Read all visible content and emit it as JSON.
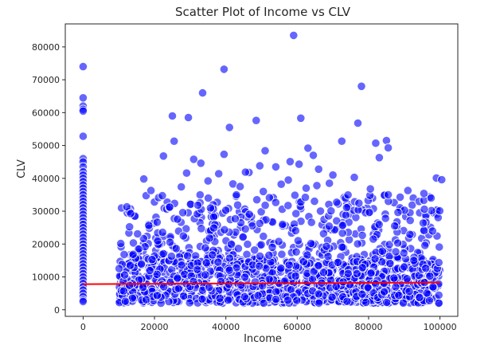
{
  "chart_data": {
    "type": "scatter",
    "title": "Scatter Plot of Income vs CLV",
    "xlabel": "Income",
    "ylabel": "CLV",
    "xlim": [
      -5000,
      105000
    ],
    "ylim": [
      -2000,
      87000
    ],
    "xticks": [
      0,
      20000,
      40000,
      60000,
      80000,
      100000
    ],
    "yticks": [
      0,
      10000,
      20000,
      30000,
      40000,
      50000,
      60000,
      70000,
      80000
    ],
    "grid": false,
    "legend": "none",
    "colors": {
      "points": "#0000ff",
      "point_edge": "#ffffff",
      "trend": "#ff0000",
      "axes": "#262626"
    },
    "points_at_zero_income": [
      [
        0,
        74000
      ],
      [
        0,
        64500
      ],
      [
        0,
        62000
      ],
      [
        0,
        61000
      ],
      [
        0,
        60500
      ],
      [
        0,
        52800
      ],
      [
        0,
        46000
      ],
      [
        0,
        45000
      ],
      [
        0,
        43500
      ],
      [
        0,
        42000
      ],
      [
        0,
        41000
      ],
      [
        0,
        40000
      ],
      [
        0,
        39000
      ],
      [
        0,
        38000
      ],
      [
        0,
        37000
      ],
      [
        0,
        36000
      ],
      [
        0,
        35000
      ],
      [
        0,
        34000
      ],
      [
        0,
        33000
      ],
      [
        0,
        32000
      ],
      [
        0,
        31000
      ],
      [
        0,
        30000
      ],
      [
        0,
        29000
      ],
      [
        0,
        28000
      ],
      [
        0,
        27000
      ],
      [
        0,
        26000
      ],
      [
        0,
        25000
      ],
      [
        0,
        24000
      ],
      [
        0,
        23000
      ],
      [
        0,
        22000
      ],
      [
        0,
        21000
      ],
      [
        0,
        20000
      ],
      [
        0,
        19000
      ],
      [
        0,
        18000
      ],
      [
        0,
        17000
      ],
      [
        0,
        16000
      ],
      [
        0,
        15000
      ],
      [
        0,
        14000
      ],
      [
        0,
        13000
      ],
      [
        0,
        12000
      ],
      [
        0,
        11000
      ],
      [
        0,
        10000
      ],
      [
        0,
        9000
      ],
      [
        0,
        8000
      ],
      [
        0,
        7000
      ],
      [
        0,
        6000
      ],
      [
        0,
        5000
      ],
      [
        0,
        4000
      ],
      [
        0,
        3000
      ],
      [
        0,
        2500
      ]
    ],
    "outlier_points": [
      [
        59000,
        83500
      ],
      [
        39500,
        73200
      ],
      [
        78000,
        68000
      ],
      [
        33500,
        66000
      ],
      [
        25000,
        59000
      ],
      [
        29500,
        58500
      ],
      [
        61000,
        58300
      ],
      [
        48500,
        57600
      ],
      [
        77000,
        56800
      ],
      [
        41000,
        55500
      ],
      [
        25500,
        51300
      ],
      [
        85000,
        51500
      ],
      [
        72500,
        51300
      ],
      [
        82000,
        50700
      ],
      [
        51000,
        48400
      ],
      [
        63000,
        49200
      ],
      [
        85500,
        49300
      ],
      [
        39500,
        47300
      ],
      [
        22500,
        46800
      ],
      [
        64500,
        47000
      ],
      [
        83000,
        46300
      ],
      [
        31000,
        45800
      ],
      [
        58000,
        45100
      ],
      [
        33000,
        44600
      ],
      [
        60500,
        44300
      ],
      [
        49500,
        43800
      ],
      [
        54000,
        43500
      ],
      [
        66000,
        42800
      ],
      [
        46500,
        41800
      ],
      [
        45500,
        41900
      ],
      [
        38000,
        41400
      ],
      [
        29000,
        41600
      ],
      [
        70000,
        41000
      ],
      [
        76000,
        40300
      ],
      [
        99000,
        40100
      ],
      [
        100500,
        39600
      ],
      [
        57500,
        39500
      ],
      [
        17000,
        39800
      ],
      [
        35000,
        39200
      ],
      [
        69000,
        38500
      ],
      [
        42000,
        38300
      ],
      [
        55500,
        38200
      ],
      [
        65500,
        37800
      ],
      [
        44000,
        37500
      ],
      [
        62500,
        37000
      ],
      [
        85500,
        35000
      ],
      [
        91000,
        36300
      ],
      [
        95500,
        35400
      ],
      [
        19000,
        36300
      ],
      [
        27500,
        37400
      ],
      [
        80500,
        36800
      ],
      [
        50500,
        36000
      ]
    ],
    "bulk_region": {
      "x_range": [
        10000,
        100000
      ],
      "y_range": [
        2000,
        35000
      ],
      "dense_y_range": [
        2000,
        15000
      ],
      "approx_point_count": 1500
    },
    "trend_line": {
      "x": [
        0,
        100000
      ],
      "y": [
        7800,
        8300
      ]
    }
  }
}
